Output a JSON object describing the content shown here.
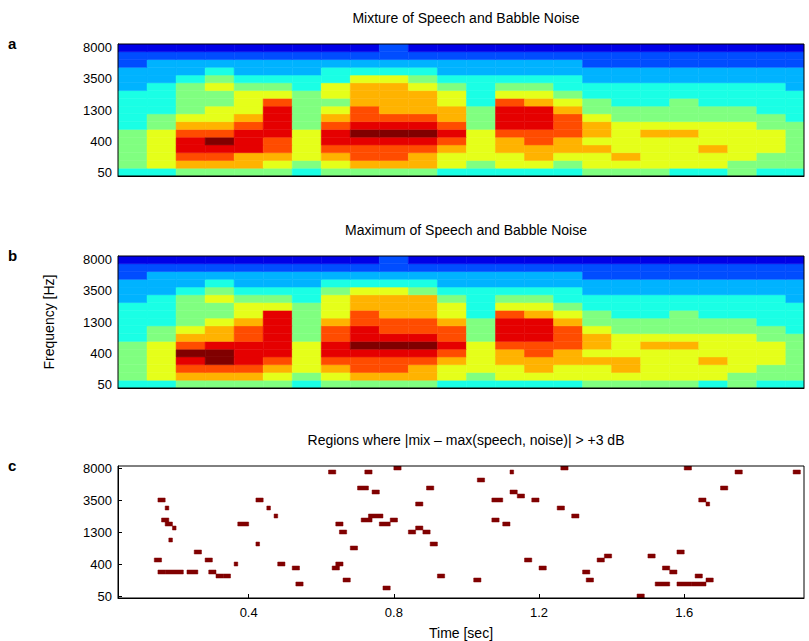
{
  "chart_data": [
    {
      "panel": "a",
      "type": "heatmap",
      "title": "Mixture of Speech and Babble Noise",
      "xlim": [
        0.04,
        1.93
      ],
      "xticks": [
        0.4,
        0.8,
        1.2,
        1.6
      ],
      "y_categories": [
        50,
        null,
        null,
        null,
        400,
        null,
        null,
        null,
        1300,
        null,
        null,
        null,
        3500,
        null,
        null,
        null,
        8000
      ],
      "time_edges": [
        0.04,
        0.12,
        0.2,
        0.28,
        0.36,
        0.44,
        0.52,
        0.6,
        0.68,
        0.76,
        0.84,
        0.92,
        1.0,
        1.08,
        1.16,
        1.24,
        1.32,
        1.4,
        1.48,
        1.56,
        1.64,
        1.72,
        1.8,
        1.88,
        1.96
      ],
      "level_range": [
        0,
        10
      ],
      "levels": [
        [
          4,
          4,
          5,
          5,
          5,
          5,
          4,
          5,
          5,
          5,
          5,
          4,
          4,
          4,
          4,
          4,
          5,
          5,
          5,
          4,
          4,
          5,
          4,
          4
        ],
        [
          5,
          6,
          7,
          7,
          7,
          6,
          5,
          6,
          7,
          7,
          7,
          6,
          5,
          6,
          6,
          5,
          6,
          6,
          6,
          6,
          6,
          5,
          5,
          5
        ],
        [
          5,
          6,
          8,
          8,
          7,
          7,
          6,
          7,
          8,
          8,
          7,
          6,
          6,
          6,
          7,
          6,
          6,
          7,
          6,
          6,
          6,
          6,
          5,
          5
        ],
        [
          5,
          6,
          9,
          9,
          9,
          8,
          6,
          8,
          8,
          8,
          8,
          7,
          6,
          7,
          7,
          7,
          7,
          6,
          6,
          6,
          7,
          6,
          6,
          5
        ],
        [
          5,
          6,
          9,
          10,
          9,
          8,
          6,
          9,
          9,
          9,
          9,
          8,
          6,
          7,
          8,
          7,
          6,
          6,
          6,
          6,
          6,
          6,
          6,
          5
        ],
        [
          5,
          6,
          8,
          8,
          9,
          9,
          6,
          9,
          10,
          10,
          10,
          9,
          6,
          8,
          8,
          8,
          7,
          6,
          7,
          7,
          6,
          6,
          6,
          5
        ],
        [
          4,
          5,
          7,
          7,
          8,
          9,
          5,
          8,
          9,
          9,
          9,
          8,
          5,
          9,
          9,
          8,
          7,
          6,
          6,
          6,
          6,
          6,
          5,
          5
        ],
        [
          4,
          5,
          6,
          6,
          7,
          9,
          5,
          7,
          8,
          8,
          8,
          7,
          5,
          9,
          9,
          8,
          6,
          5,
          5,
          5,
          5,
          5,
          5,
          4
        ],
        [
          4,
          4,
          5,
          6,
          6,
          9,
          5,
          6,
          8,
          7,
          7,
          7,
          5,
          9,
          9,
          7,
          5,
          5,
          5,
          5,
          5,
          5,
          4,
          4
        ],
        [
          4,
          4,
          5,
          5,
          6,
          8,
          5,
          5,
          7,
          7,
          7,
          6,
          4,
          8,
          7,
          6,
          5,
          4,
          4,
          5,
          4,
          4,
          4,
          4
        ],
        [
          4,
          4,
          5,
          5,
          6,
          6,
          5,
          6,
          7,
          7,
          7,
          6,
          4,
          6,
          6,
          5,
          4,
          4,
          4,
          4,
          4,
          4,
          4,
          4
        ],
        [
          3,
          4,
          5,
          6,
          5,
          5,
          4,
          6,
          7,
          7,
          6,
          5,
          4,
          5,
          5,
          4,
          4,
          4,
          4,
          4,
          4,
          4,
          4,
          3
        ],
        [
          3,
          3,
          4,
          5,
          4,
          4,
          4,
          4,
          6,
          6,
          5,
          4,
          4,
          4,
          4,
          4,
          3,
          3,
          3,
          3,
          3,
          3,
          3,
          3
        ],
        [
          3,
          3,
          3,
          4,
          3,
          3,
          3,
          4,
          4,
          4,
          4,
          3,
          3,
          3,
          3,
          3,
          3,
          3,
          3,
          3,
          3,
          3,
          3,
          3
        ],
        [
          2,
          3,
          3,
          3,
          3,
          3,
          3,
          3,
          3,
          3,
          3,
          3,
          3,
          3,
          3,
          3,
          2,
          2,
          2,
          2,
          2,
          2,
          2,
          2
        ],
        [
          2,
          2,
          2,
          2,
          2,
          2,
          2,
          2,
          2,
          2,
          2,
          2,
          2,
          2,
          2,
          2,
          2,
          2,
          2,
          2,
          2,
          2,
          2,
          2
        ],
        [
          1,
          1,
          1,
          1,
          1,
          1,
          1,
          1,
          1,
          2,
          1,
          1,
          1,
          1,
          1,
          1,
          1,
          1,
          1,
          1,
          1,
          1,
          1,
          1
        ]
      ],
      "grid": false,
      "tick_labels": "y"
    },
    {
      "panel": "b",
      "type": "heatmap",
      "title": "Maximum of Speech and Babble Noise",
      "ylabel": "Frequency [Hz]",
      "xlim": [
        0.04,
        1.93
      ],
      "xticks": [
        0.4,
        0.8,
        1.2,
        1.6
      ],
      "y_categories": [
        50,
        null,
        null,
        null,
        400,
        null,
        null,
        null,
        1300,
        null,
        null,
        null,
        3500,
        null,
        null,
        null,
        8000
      ],
      "time_edges": [
        0.04,
        0.12,
        0.2,
        0.28,
        0.36,
        0.44,
        0.52,
        0.6,
        0.68,
        0.76,
        0.84,
        0.92,
        1.0,
        1.08,
        1.16,
        1.24,
        1.32,
        1.4,
        1.48,
        1.56,
        1.64,
        1.72,
        1.8,
        1.88,
        1.96
      ],
      "level_range": [
        0,
        10
      ],
      "levels": [
        [
          4,
          4,
          5,
          5,
          5,
          5,
          4,
          5,
          5,
          5,
          5,
          4,
          4,
          4,
          4,
          4,
          5,
          5,
          5,
          5,
          4,
          5,
          4,
          4
        ],
        [
          5,
          6,
          7,
          7,
          7,
          6,
          5,
          6,
          7,
          7,
          7,
          6,
          5,
          6,
          6,
          6,
          6,
          6,
          6,
          6,
          6,
          5,
          5,
          5
        ],
        [
          5,
          6,
          8,
          8,
          8,
          7,
          6,
          7,
          8,
          8,
          7,
          6,
          6,
          6,
          7,
          6,
          6,
          7,
          6,
          6,
          6,
          6,
          5,
          5
        ],
        [
          5,
          6,
          9,
          10,
          9,
          8,
          6,
          8,
          8,
          8,
          8,
          7,
          6,
          7,
          7,
          7,
          7,
          7,
          6,
          6,
          7,
          6,
          6,
          5
        ],
        [
          5,
          6,
          10,
          10,
          9,
          9,
          6,
          9,
          9,
          9,
          9,
          8,
          6,
          7,
          8,
          7,
          6,
          6,
          6,
          6,
          6,
          6,
          6,
          5
        ],
        [
          5,
          6,
          8,
          9,
          9,
          9,
          6,
          9,
          10,
          10,
          10,
          9,
          6,
          8,
          8,
          8,
          7,
          6,
          7,
          7,
          6,
          6,
          6,
          5
        ],
        [
          4,
          5,
          7,
          7,
          8,
          9,
          5,
          8,
          9,
          9,
          9,
          8,
          5,
          9,
          9,
          8,
          7,
          6,
          6,
          6,
          6,
          6,
          5,
          5
        ],
        [
          4,
          5,
          6,
          7,
          8,
          9,
          5,
          8,
          9,
          8,
          8,
          8,
          5,
          9,
          9,
          8,
          6,
          5,
          5,
          5,
          5,
          5,
          5,
          4
        ],
        [
          4,
          4,
          5,
          6,
          7,
          9,
          5,
          7,
          8,
          8,
          8,
          7,
          5,
          9,
          9,
          7,
          5,
          5,
          5,
          5,
          5,
          5,
          4,
          4
        ],
        [
          4,
          4,
          5,
          5,
          6,
          9,
          5,
          6,
          8,
          7,
          7,
          6,
          4,
          8,
          7,
          6,
          5,
          4,
          4,
          5,
          4,
          4,
          4,
          4
        ],
        [
          4,
          4,
          5,
          5,
          6,
          6,
          5,
          6,
          7,
          7,
          7,
          6,
          4,
          6,
          6,
          5,
          4,
          4,
          4,
          4,
          4,
          4,
          4,
          4
        ],
        [
          3,
          4,
          5,
          6,
          5,
          5,
          4,
          6,
          7,
          7,
          7,
          5,
          4,
          5,
          5,
          4,
          4,
          4,
          4,
          4,
          4,
          4,
          4,
          3
        ],
        [
          3,
          3,
          4,
          5,
          4,
          4,
          4,
          5,
          6,
          6,
          5,
          4,
          4,
          4,
          4,
          4,
          3,
          3,
          3,
          3,
          3,
          3,
          3,
          3
        ],
        [
          3,
          3,
          3,
          4,
          3,
          3,
          3,
          4,
          4,
          4,
          4,
          3,
          3,
          3,
          3,
          3,
          3,
          3,
          3,
          3,
          3,
          3,
          3,
          3
        ],
        [
          2,
          3,
          3,
          3,
          3,
          3,
          3,
          3,
          3,
          3,
          3,
          3,
          3,
          3,
          3,
          3,
          2,
          2,
          2,
          2,
          2,
          2,
          2,
          2
        ],
        [
          2,
          2,
          2,
          2,
          2,
          2,
          2,
          2,
          2,
          2,
          2,
          2,
          2,
          2,
          2,
          2,
          2,
          2,
          2,
          2,
          2,
          2,
          2,
          2
        ],
        [
          1,
          1,
          1,
          1,
          1,
          1,
          1,
          1,
          1,
          2,
          1,
          1,
          1,
          1,
          1,
          1,
          1,
          1,
          1,
          1,
          1,
          1,
          1,
          1
        ]
      ],
      "grid": false,
      "tick_labels": "y"
    },
    {
      "panel": "c",
      "type": "mask",
      "title": "Regions where |mix – max(speech, noise)| > +3 dB",
      "xlabel": "Time [sec]",
      "xlim": [
        0.04,
        1.93
      ],
      "xticks": [
        0.4,
        0.8,
        1.2,
        1.6
      ],
      "y_categories": [
        50,
        null,
        null,
        null,
        null,
        null,
        null,
        null,
        400,
        null,
        null,
        null,
        null,
        null,
        null,
        null,
        1300,
        null,
        null,
        null,
        null,
        null,
        null,
        null,
        3500,
        null,
        null,
        null,
        null,
        null,
        null,
        null,
        8000
      ],
      "color": "#800000",
      "regions": [
        [
          0.15,
          0.17,
          6
        ],
        [
          0.17,
          0.22,
          6
        ],
        [
          0.23,
          0.26,
          6
        ],
        [
          0.16,
          0.18,
          19
        ],
        [
          0.17,
          0.19,
          18
        ],
        [
          0.18,
          0.19,
          14
        ],
        [
          0.15,
          0.17,
          24
        ],
        [
          0.17,
          0.18,
          22
        ],
        [
          0.25,
          0.27,
          11
        ],
        [
          0.28,
          0.3,
          9
        ],
        [
          0.29,
          0.31,
          6
        ],
        [
          0.31,
          0.33,
          5
        ],
        [
          0.14,
          0.16,
          9
        ],
        [
          0.19,
          0.2,
          17
        ],
        [
          0.37,
          0.4,
          18
        ],
        [
          0.33,
          0.35,
          5
        ],
        [
          0.36,
          0.37,
          8
        ],
        [
          0.42,
          0.43,
          13
        ],
        [
          0.42,
          0.44,
          24
        ],
        [
          0.45,
          0.46,
          22
        ],
        [
          0.47,
          0.48,
          20
        ],
        [
          0.48,
          0.5,
          8
        ],
        [
          0.52,
          0.54,
          7
        ],
        [
          0.53,
          0.55,
          3
        ],
        [
          0.64,
          0.66,
          8
        ],
        [
          0.64,
          0.66,
          18
        ],
        [
          0.65,
          0.67,
          16
        ],
        [
          0.63,
          0.65,
          7
        ],
        [
          0.66,
          0.68,
          4
        ],
        [
          0.68,
          0.7,
          12
        ],
        [
          0.71,
          0.74,
          19
        ],
        [
          0.73,
          0.77,
          20
        ],
        [
          0.76,
          0.79,
          18
        ],
        [
          0.79,
          0.81,
          19
        ],
        [
          0.77,
          0.79,
          2
        ],
        [
          0.7,
          0.73,
          27
        ],
        [
          0.74,
          0.76,
          26
        ],
        [
          0.72,
          0.74,
          31
        ],
        [
          0.84,
          0.86,
          16
        ],
        [
          0.86,
          0.88,
          17
        ],
        [
          0.88,
          0.9,
          16
        ],
        [
          0.9,
          0.92,
          13
        ],
        [
          0.86,
          0.88,
          23
        ],
        [
          0.89,
          0.91,
          27
        ],
        [
          0.92,
          0.94,
          5
        ],
        [
          0.8,
          0.82,
          32
        ],
        [
          0.62,
          0.64,
          31
        ],
        [
          1.03,
          1.05,
          29
        ],
        [
          1.07,
          1.1,
          24
        ],
        [
          1.12,
          1.14,
          26
        ],
        [
          1.14,
          1.16,
          25
        ],
        [
          1.18,
          1.2,
          24
        ],
        [
          1.07,
          1.09,
          19
        ],
        [
          1.1,
          1.12,
          18
        ],
        [
          1.16,
          1.18,
          9
        ],
        [
          1.2,
          1.22,
          7
        ],
        [
          1.25,
          1.27,
          22
        ],
        [
          1.26,
          1.28,
          32
        ],
        [
          1.29,
          1.31,
          20
        ],
        [
          1.32,
          1.34,
          6
        ],
        [
          1.33,
          1.35,
          4
        ],
        [
          1.36,
          1.38,
          9
        ],
        [
          1.38,
          1.4,
          10
        ],
        [
          1.12,
          1.13,
          31
        ],
        [
          1.02,
          1.04,
          4
        ],
        [
          1.47,
          1.49,
          0
        ],
        [
          1.52,
          1.56,
          3
        ],
        [
          1.54,
          1.56,
          7
        ],
        [
          1.56,
          1.58,
          6
        ],
        [
          1.58,
          1.62,
          3
        ],
        [
          1.62,
          1.66,
          3
        ],
        [
          1.66,
          1.68,
          4
        ],
        [
          1.63,
          1.65,
          5
        ],
        [
          1.6,
          1.62,
          32
        ],
        [
          1.64,
          1.66,
          24
        ],
        [
          1.66,
          1.67,
          23
        ],
        [
          1.7,
          1.72,
          27
        ],
        [
          1.74,
          1.76,
          31
        ],
        [
          1.9,
          1.92,
          31
        ],
        [
          1.5,
          1.52,
          10
        ],
        [
          1.58,
          1.6,
          11
        ]
      ],
      "grid": false,
      "tick_labels": true
    }
  ]
}
